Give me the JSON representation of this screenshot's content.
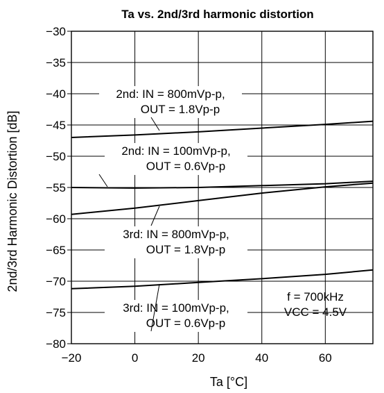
{
  "chart_data": {
    "type": "line",
    "title": "Ta vs. 2nd/3rd harmonic distortion",
    "xlabel": "Ta [°C]",
    "ylabel": "2nd/3rd Harmonic Distortion [dB]",
    "xlim": [
      -20,
      75
    ],
    "ylim": [
      -80,
      -30
    ],
    "xticks": [
      -20,
      0,
      20,
      40,
      60
    ],
    "xtick_labels": [
      "−20",
      "0",
      "20",
      "40",
      "60"
    ],
    "yticks": [
      -30,
      -35,
      -40,
      -45,
      -50,
      -55,
      -60,
      -65,
      -70,
      -75,
      -80
    ],
    "ytick_labels": [
      "−30",
      "−35",
      "−40",
      "−45",
      "−50",
      "−55",
      "−60",
      "−65",
      "−70",
      "−75",
      "−80"
    ],
    "grid": true,
    "series": [
      {
        "line1": "2nd: IN = 800mVp-p,",
        "line2": "OUT = 1.8Vp-p",
        "x": [
          -20,
          0,
          20,
          40,
          60,
          75
        ],
        "y": [
          -47.0,
          -46.6,
          -46.1,
          -45.5,
          -44.9,
          -44.4
        ]
      },
      {
        "line1": "2nd: IN = 100mVp-p,",
        "line2": "OUT = 0.6Vp-p",
        "x": [
          -20,
          0,
          20,
          40,
          60,
          75
        ],
        "y": [
          -55.0,
          -55.1,
          -55.0,
          -54.7,
          -54.4,
          -54.0
        ]
      },
      {
        "line1": "3rd: IN = 800mVp-p,",
        "line2": "OUT = 1.8Vp-p",
        "x": [
          -20,
          0,
          20,
          40,
          60,
          75
        ],
        "y": [
          -59.3,
          -58.3,
          -57.1,
          -55.9,
          -54.9,
          -54.3
        ]
      },
      {
        "line1": "3rd: IN = 100mVp-p,",
        "line2": "OUT = 0.6Vp-p",
        "x": [
          -20,
          0,
          20,
          40,
          60,
          75
        ],
        "y": [
          -71.2,
          -70.8,
          -70.2,
          -69.6,
          -68.9,
          -68.2
        ]
      }
    ],
    "conditions": {
      "freq": "f = 700kHz",
      "vcc": "VCC = 4.5V"
    }
  }
}
